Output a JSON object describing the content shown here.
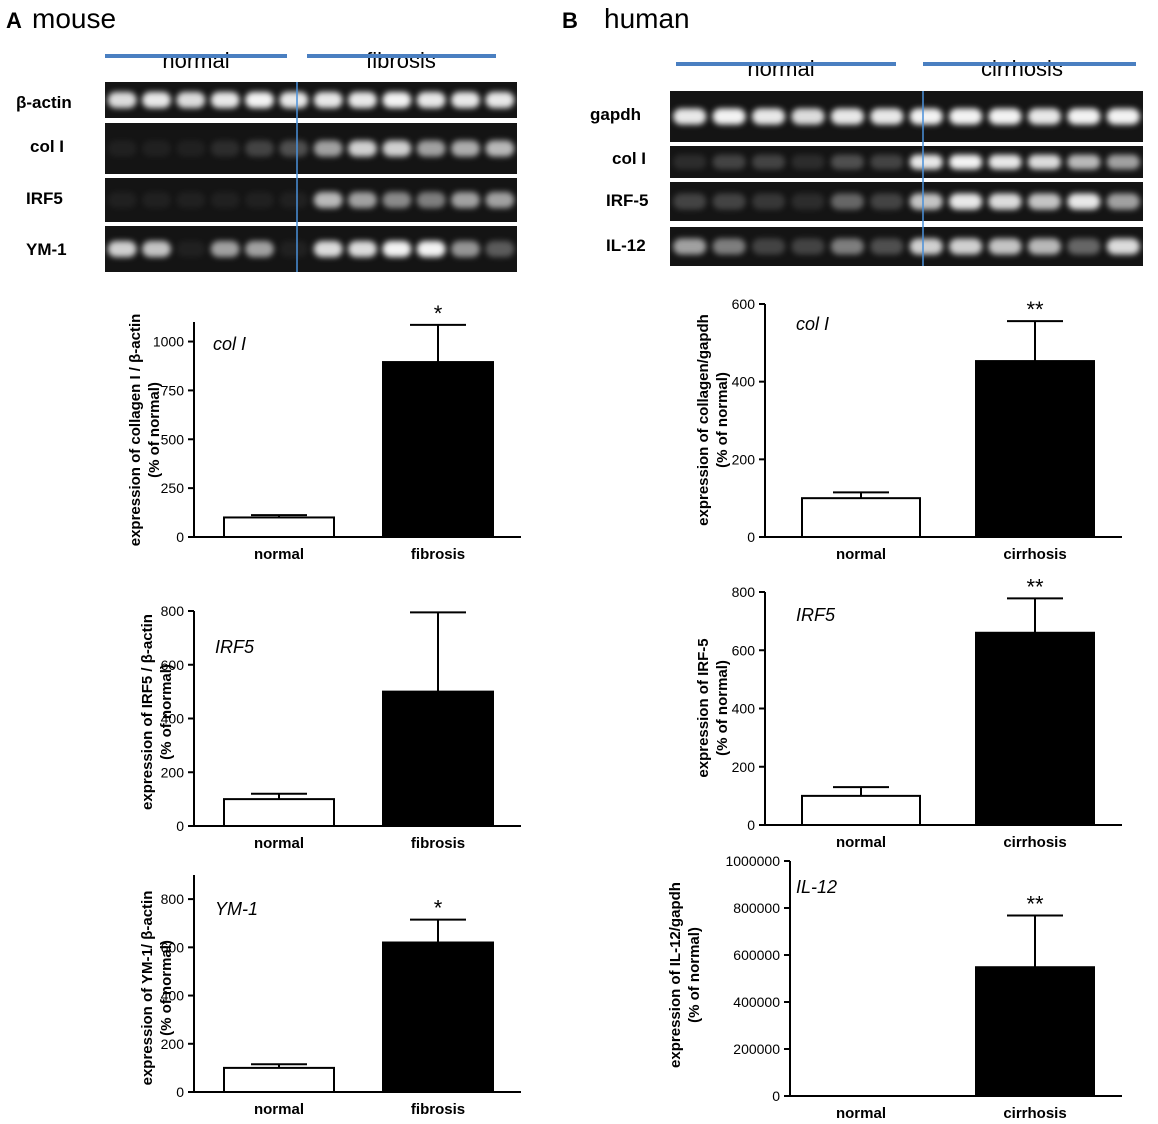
{
  "panels": [
    {
      "letter": "A",
      "title": "mouse",
      "blot": {
        "groups": [
          {
            "label": "normal",
            "lanes": 6
          },
          {
            "label": "fibrosis",
            "lanes": 6
          }
        ],
        "rows": [
          {
            "label": "β-actin",
            "lanes": [
              0.85,
              0.9,
              0.85,
              0.9,
              0.95,
              0.9,
              0.9,
              0.9,
              0.95,
              0.9,
              0.9,
              0.9
            ]
          },
          {
            "label": "col I",
            "lanes": [
              0.05,
              0.05,
              0.05,
              0.1,
              0.2,
              0.25,
              0.6,
              0.8,
              0.8,
              0.6,
              0.65,
              0.7
            ]
          },
          {
            "label": "IRF5",
            "lanes": [
              0.05,
              0.05,
              0.05,
              0.05,
              0.05,
              0.05,
              0.7,
              0.6,
              0.5,
              0.45,
              0.6,
              0.6
            ]
          },
          {
            "label": "YM-1",
            "lanes": [
              0.8,
              0.75,
              0.05,
              0.6,
              0.6,
              0.05,
              0.85,
              0.85,
              0.95,
              0.95,
              0.55,
              0.3
            ]
          }
        ]
      }
    },
    {
      "letter": "B",
      "title": "human",
      "blot": {
        "groups": [
          {
            "label": "normal",
            "lanes": 6
          },
          {
            "label": "cirrhosis",
            "lanes": 6
          }
        ],
        "rows": [
          {
            "label": "gapdh",
            "lanes": [
              0.9,
              0.95,
              0.9,
              0.85,
              0.9,
              0.9,
              0.95,
              0.95,
              0.95,
              0.9,
              0.95,
              0.95
            ]
          },
          {
            "label": "col I",
            "lanes": [
              0.1,
              0.2,
              0.2,
              0.1,
              0.25,
              0.2,
              0.9,
              0.95,
              0.9,
              0.85,
              0.7,
              0.6
            ]
          },
          {
            "label": "IRF-5",
            "lanes": [
              0.2,
              0.2,
              0.15,
              0.1,
              0.35,
              0.2,
              0.75,
              0.9,
              0.85,
              0.75,
              0.9,
              0.6
            ]
          },
          {
            "label": "IL-12",
            "lanes": [
              0.6,
              0.45,
              0.2,
              0.2,
              0.45,
              0.25,
              0.8,
              0.8,
              0.75,
              0.7,
              0.35,
              0.85
            ]
          }
        ]
      }
    }
  ],
  "chart_data": [
    {
      "type": "bar",
      "panel": "A",
      "annotation": "col I",
      "categories": [
        "normal",
        "fibrosis"
      ],
      "values": [
        100,
        895
      ],
      "errors": [
        12,
        190
      ],
      "significance": [
        "",
        "*"
      ],
      "fills": [
        "#ffffff",
        "#000000"
      ],
      "ylabel": [
        "expression of collagen I / β-actin",
        "(% of normal)"
      ],
      "ylim": [
        0,
        1100
      ],
      "yticks": [
        0,
        250,
        500,
        750,
        1000
      ]
    },
    {
      "type": "bar",
      "panel": "A",
      "annotation": "IRF5",
      "categories": [
        "normal",
        "fibrosis"
      ],
      "values": [
        100,
        500
      ],
      "errors": [
        20,
        295
      ],
      "significance": [
        "",
        ""
      ],
      "fills": [
        "#ffffff",
        "#000000"
      ],
      "ylabel": [
        "expression of IRF5 / β-actin",
        "(% of normal)"
      ],
      "ylim": [
        0,
        800
      ],
      "yticks": [
        0,
        200,
        400,
        600,
        800
      ]
    },
    {
      "type": "bar",
      "panel": "A",
      "annotation": "YM-1",
      "categories": [
        "normal",
        "fibrosis"
      ],
      "values": [
        100,
        620
      ],
      "errors": [
        15,
        95
      ],
      "significance": [
        "",
        "*"
      ],
      "fills": [
        "#ffffff",
        "#000000"
      ],
      "ylabel": [
        "expression of YM-1/ β-actin",
        "(% of normal)"
      ],
      "ylim": [
        0,
        900
      ],
      "yticks": [
        0,
        200,
        400,
        600,
        800
      ]
    },
    {
      "type": "bar",
      "panel": "B",
      "annotation": "col I",
      "categories": [
        "normal",
        "cirrhosis"
      ],
      "values": [
        100,
        453
      ],
      "errors": [
        15,
        103
      ],
      "significance": [
        "",
        "**"
      ],
      "fills": [
        "#ffffff",
        "#000000"
      ],
      "ylabel": [
        "expression of collagen/gapdh",
        "(% of normal)"
      ],
      "ylim": [
        0,
        600
      ],
      "yticks": [
        0,
        200,
        400,
        600
      ]
    },
    {
      "type": "bar",
      "panel": "B",
      "annotation": "IRF5",
      "categories": [
        "normal",
        "cirrhosis"
      ],
      "values": [
        100,
        660
      ],
      "errors": [
        30,
        118
      ],
      "significance": [
        "",
        "**"
      ],
      "fills": [
        "#ffffff",
        "#000000"
      ],
      "ylabel": [
        "expression of IRF-5",
        "(% of normal)"
      ],
      "ylim": [
        0,
        800
      ],
      "yticks": [
        0,
        200,
        400,
        600,
        800
      ]
    },
    {
      "type": "bar",
      "panel": "B",
      "annotation": "IL-12",
      "categories": [
        "normal",
        "cirrhosis"
      ],
      "values": [
        0,
        548000
      ],
      "errors": [
        0,
        220000
      ],
      "significance": [
        "",
        "**"
      ],
      "fills": [
        "#ffffff",
        "#000000"
      ],
      "ylabel": [
        "expression of IL-12/gapdh",
        "(% of normal)"
      ],
      "ylim": [
        0,
        1000000
      ],
      "yticks": [
        0,
        200000,
        400000,
        600000,
        800000,
        1000000
      ]
    }
  ],
  "colors": {
    "group_bar": "#4a7fc1",
    "divider": "#4a90d9",
    "blot_bg": "#141414",
    "band": "#ffffff"
  }
}
